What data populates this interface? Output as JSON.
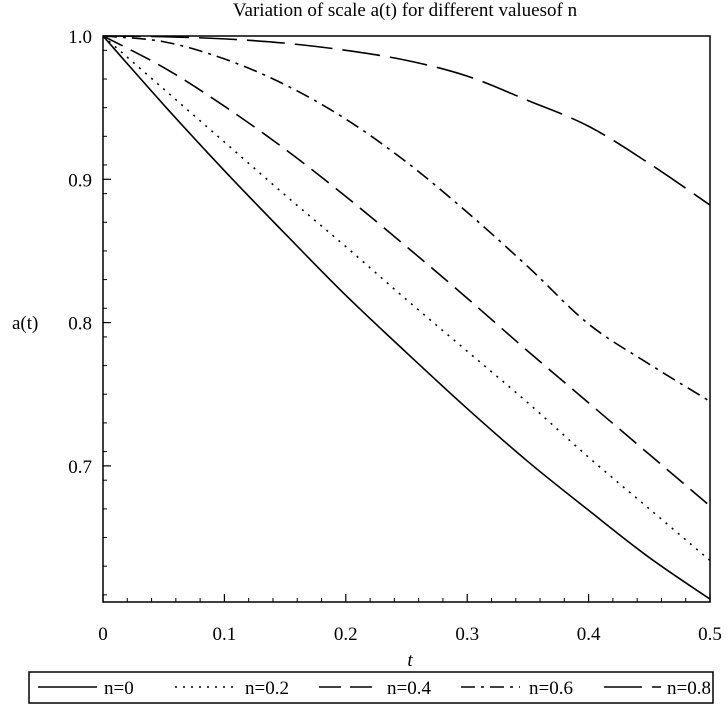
{
  "chart_data": {
    "type": "line",
    "title": "Variation of scale a(t) for different valuesof n",
    "xlabel": "t",
    "ylabel": "a(t)",
    "xlim": [
      0,
      0.5
    ],
    "ylim": [
      0.605,
      1.0
    ],
    "x_ticks": [
      0,
      0.1,
      0.2,
      0.3,
      0.4,
      0.5
    ],
    "x_tick_labels": [
      "0",
      "0.1",
      "0.2",
      "0.3",
      "0.4",
      "0.5"
    ],
    "y_ticks": [
      0.7,
      0.8,
      0.9,
      1.0
    ],
    "y_tick_labels": [
      "0.7",
      "0.8",
      "0.9",
      "1.0"
    ],
    "grid": false,
    "legend_position": "bottom",
    "x": [
      0,
      0.05,
      0.1,
      0.15,
      0.2,
      0.25,
      0.3,
      0.35,
      0.4,
      0.45,
      0.5
    ],
    "series": [
      {
        "name": "n=0",
        "style": "solid",
        "values": [
          1.0,
          0.952,
          0.906,
          0.862,
          0.819,
          0.779,
          0.74,
          0.703,
          0.669,
          0.636,
          0.607
        ]
      },
      {
        "name": "n=0.2",
        "style": "dotted",
        "values": [
          1.0,
          0.963,
          0.926,
          0.889,
          0.853,
          0.816,
          0.78,
          0.744,
          0.706,
          0.67,
          0.634
        ]
      },
      {
        "name": "n=0.4",
        "style": "dash",
        "values": [
          1.0,
          0.978,
          0.951,
          0.921,
          0.888,
          0.853,
          0.817,
          0.78,
          0.744,
          0.708,
          0.672
        ]
      },
      {
        "name": "n=0.6",
        "style": "dash-dot",
        "values": [
          1.0,
          0.996,
          0.984,
          0.966,
          0.942,
          0.912,
          0.877,
          0.839,
          0.799,
          0.771,
          0.745
        ]
      },
      {
        "name": "n=0.8",
        "style": "long-dash",
        "values": [
          1.0,
          0.9995,
          0.998,
          0.995,
          0.99,
          0.983,
          0.972,
          0.955,
          0.937,
          0.911,
          0.882
        ]
      }
    ]
  }
}
